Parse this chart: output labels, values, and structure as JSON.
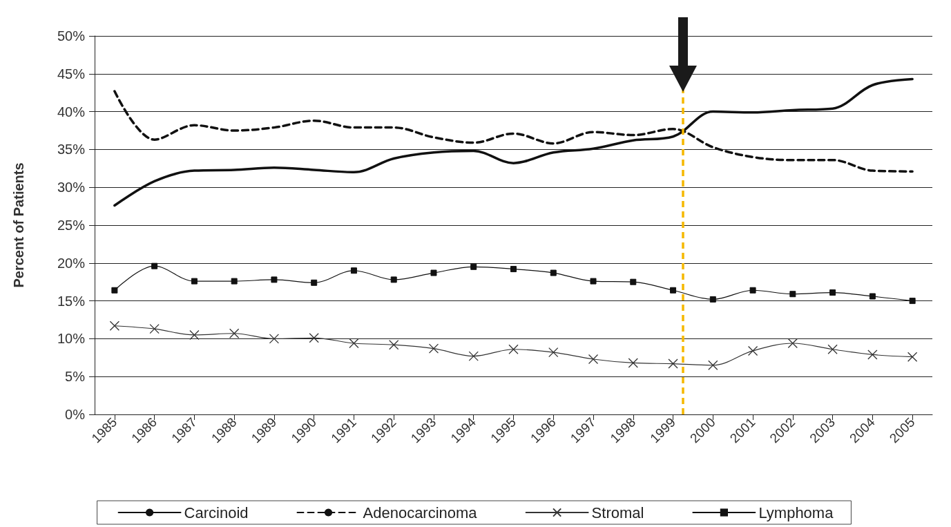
{
  "chart_data": {
    "type": "line",
    "ylabel": "Percent of Patients",
    "x": [
      1985,
      1986,
      1987,
      1988,
      1989,
      1990,
      1991,
      1992,
      1993,
      1994,
      1995,
      1996,
      1997,
      1998,
      1999,
      2000,
      2001,
      2002,
      2003,
      2004,
      2005
    ],
    "xlim": [
      1984.5,
      2005.5
    ],
    "xticks": [
      1985,
      1986,
      1987,
      1988,
      1989,
      1990,
      1991,
      1992,
      1993,
      1994,
      1995,
      1996,
      1997,
      1998,
      1999,
      2000,
      2001,
      2002,
      2003,
      2004,
      2005
    ],
    "ylim": [
      0,
      50
    ],
    "yticks": [
      {
        "value": 0,
        "label": "0%"
      },
      {
        "value": 5,
        "label": "5%"
      },
      {
        "value": 10,
        "label": "10%"
      },
      {
        "value": 15,
        "label": "15%"
      },
      {
        "value": 20,
        "label": "20%"
      },
      {
        "value": 25,
        "label": "25%"
      },
      {
        "value": 30,
        "label": "30%"
      },
      {
        "value": 35,
        "label": "35%"
      },
      {
        "value": 40,
        "label": "40%"
      },
      {
        "value": 45,
        "label": "45%"
      },
      {
        "value": 50,
        "label": "50%"
      }
    ],
    "grid": "y",
    "legend": "bottom",
    "series": [
      {
        "name": "Carcinoid",
        "color": "#111111",
        "marker": "none",
        "line_style": "solid",
        "values": [
          27.6,
          30.8,
          32.2,
          32.3,
          32.6,
          32.3,
          32.0,
          33.8,
          34.6,
          34.8,
          33.2,
          34.6,
          35.1,
          36.2,
          36.7,
          40.0,
          39.9,
          40.2,
          40.4,
          43.5,
          44.3
        ]
      },
      {
        "name": "Adenocarcinoma",
        "color": "#111111",
        "marker": "none",
        "line_style": "dashed",
        "values": [
          42.7,
          36.3,
          38.2,
          37.5,
          37.9,
          38.8,
          37.9,
          37.9,
          36.6,
          35.9,
          37.1,
          35.8,
          37.3,
          36.9,
          37.7,
          35.3,
          34.0,
          33.6,
          33.6,
          32.2,
          32.1
        ]
      },
      {
        "name": "Stromal",
        "color": "#333333",
        "marker": "cross",
        "line_style": "solid",
        "values": [
          11.7,
          11.3,
          10.5,
          10.7,
          10.0,
          10.1,
          9.4,
          9.2,
          8.7,
          7.7,
          8.6,
          8.2,
          7.3,
          6.8,
          6.7,
          6.5,
          8.4,
          9.4,
          8.6,
          7.9,
          7.6
        ]
      },
      {
        "name": "Lymphoma",
        "color": "#111111",
        "marker": "square",
        "line_style": "solid",
        "values": [
          16.4,
          19.6,
          17.6,
          17.6,
          17.8,
          17.4,
          19.0,
          17.8,
          18.7,
          19.5,
          19.2,
          18.7,
          17.6,
          17.5,
          16.4,
          15.2,
          16.4,
          15.9,
          16.1,
          15.6,
          15.0
        ]
      }
    ],
    "ref_lines": [
      {
        "axis": "x",
        "value": 1999.25,
        "color": "#f5b800",
        "line_style": "dashed"
      }
    ]
  }
}
